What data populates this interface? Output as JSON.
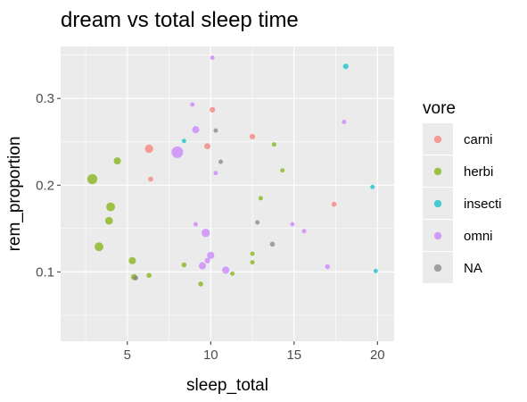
{
  "chart_data": {
    "type": "scatter",
    "title": "dream vs total sleep time",
    "xlabel": "sleep_total",
    "ylabel": "rem_proportion",
    "xlim": [
      1.0,
      21.0
    ],
    "ylim": [
      0.02,
      0.36
    ],
    "xticks": [
      5,
      10,
      15,
      20
    ],
    "xtick_labels": [
      "5",
      "10",
      "15",
      "20"
    ],
    "yticks": [
      0.1,
      0.2,
      0.3
    ],
    "ytick_labels": [
      "0.1",
      "0.2",
      "0.3"
    ],
    "grid": true,
    "legend_title": "vore",
    "legend_position": "right",
    "point_opacity": 0.7,
    "series": [
      {
        "name": "carni",
        "color": "#F8766D",
        "points": [
          {
            "x": 10.1,
            "y": 0.287,
            "size": 2.0
          },
          {
            "x": 6.3,
            "y": 0.242,
            "size": 3.0
          },
          {
            "x": 9.8,
            "y": 0.245,
            "size": 2.2
          },
          {
            "x": 12.5,
            "y": 0.256,
            "size": 2.0
          },
          {
            "x": 6.4,
            "y": 0.207,
            "size": 1.8
          },
          {
            "x": 17.4,
            "y": 0.178,
            "size": 1.8
          }
        ]
      },
      {
        "name": "herbi",
        "color": "#7CAE00",
        "points": [
          {
            "x": 2.9,
            "y": 0.207,
            "size": 3.6
          },
          {
            "x": 4.4,
            "y": 0.228,
            "size": 2.6
          },
          {
            "x": 4.0,
            "y": 0.175,
            "size": 3.2
          },
          {
            "x": 3.9,
            "y": 0.159,
            "size": 2.8
          },
          {
            "x": 3.3,
            "y": 0.129,
            "size": 3.2
          },
          {
            "x": 5.3,
            "y": 0.113,
            "size": 2.6
          },
          {
            "x": 5.4,
            "y": 0.094,
            "size": 2.2
          },
          {
            "x": 6.3,
            "y": 0.096,
            "size": 1.8
          },
          {
            "x": 8.4,
            "y": 0.108,
            "size": 1.8
          },
          {
            "x": 9.4,
            "y": 0.086,
            "size": 1.8
          },
          {
            "x": 11.3,
            "y": 0.098,
            "size": 1.6
          },
          {
            "x": 12.5,
            "y": 0.121,
            "size": 1.6
          },
          {
            "x": 12.5,
            "y": 0.111,
            "size": 1.6
          },
          {
            "x": 13.0,
            "y": 0.185,
            "size": 1.6
          },
          {
            "x": 13.8,
            "y": 0.247,
            "size": 1.6
          },
          {
            "x": 14.3,
            "y": 0.217,
            "size": 1.6
          }
        ]
      },
      {
        "name": "insecti",
        "color": "#00BFC4",
        "points": [
          {
            "x": 18.1,
            "y": 0.337,
            "size": 2.0
          },
          {
            "x": 19.7,
            "y": 0.198,
            "size": 1.6
          },
          {
            "x": 19.9,
            "y": 0.101,
            "size": 1.6
          },
          {
            "x": 8.4,
            "y": 0.251,
            "size": 1.6
          }
        ]
      },
      {
        "name": "omni",
        "color": "#C77CFF",
        "points": [
          {
            "x": 10.1,
            "y": 0.347,
            "size": 1.6
          },
          {
            "x": 8.9,
            "y": 0.293,
            "size": 1.6
          },
          {
            "x": 9.1,
            "y": 0.264,
            "size": 2.6
          },
          {
            "x": 8.0,
            "y": 0.238,
            "size": 4.2
          },
          {
            "x": 10.3,
            "y": 0.214,
            "size": 1.6
          },
          {
            "x": 18.0,
            "y": 0.273,
            "size": 1.6
          },
          {
            "x": 9.1,
            "y": 0.155,
            "size": 1.6
          },
          {
            "x": 9.7,
            "y": 0.145,
            "size": 3.0
          },
          {
            "x": 9.8,
            "y": 0.113,
            "size": 2.0
          },
          {
            "x": 10.0,
            "y": 0.119,
            "size": 2.6
          },
          {
            "x": 9.5,
            "y": 0.107,
            "size": 2.6
          },
          {
            "x": 10.9,
            "y": 0.102,
            "size": 2.6
          },
          {
            "x": 14.9,
            "y": 0.155,
            "size": 1.6
          },
          {
            "x": 15.6,
            "y": 0.147,
            "size": 1.6
          },
          {
            "x": 17.0,
            "y": 0.106,
            "size": 1.8
          }
        ]
      },
      {
        "name": "NA",
        "color": "#7F7F7F",
        "points": [
          {
            "x": 10.3,
            "y": 0.263,
            "size": 1.6
          },
          {
            "x": 10.6,
            "y": 0.227,
            "size": 1.6
          },
          {
            "x": 12.8,
            "y": 0.157,
            "size": 1.6
          },
          {
            "x": 13.7,
            "y": 0.132,
            "size": 1.8
          },
          {
            "x": 5.5,
            "y": 0.093,
            "size": 1.8
          }
        ]
      }
    ]
  }
}
